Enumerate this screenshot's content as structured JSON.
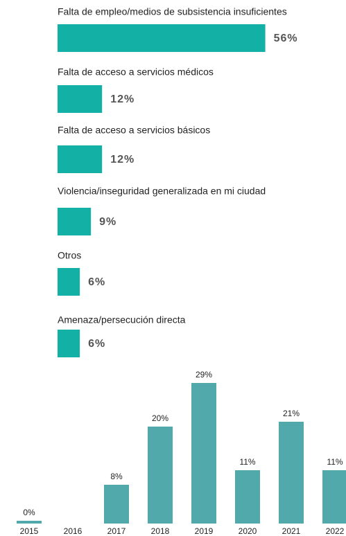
{
  "chart_data": [
    {
      "type": "hbar",
      "categories": [
        "Falta de empleo/medios de subsistencia insuficientes",
        "Falta de acceso a servicios médicos",
        "Falta de acceso a servicios básicos",
        "Violencia/inseguridad generalizada en mi ciudad",
        "Otros",
        "Amenaza/persecución directa"
      ],
      "values": [
        56,
        12,
        12,
        9,
        6,
        6
      ],
      "value_labels": [
        "56%",
        "12%",
        "12%",
        "9%",
        "6%",
        "6%"
      ],
      "color": "#13b0a5"
    },
    {
      "type": "bar",
      "categories": [
        "2015",
        "2016",
        "2017",
        "2018",
        "2019",
        "2020",
        "2021",
        "2022"
      ],
      "values": [
        0,
        null,
        8,
        20,
        29,
        11,
        21,
        11
      ],
      "value_labels": [
        "0%",
        null,
        "8%",
        "20%",
        "29%",
        "11%",
        "21%",
        "11%"
      ],
      "color": "#52a9ab"
    }
  ]
}
